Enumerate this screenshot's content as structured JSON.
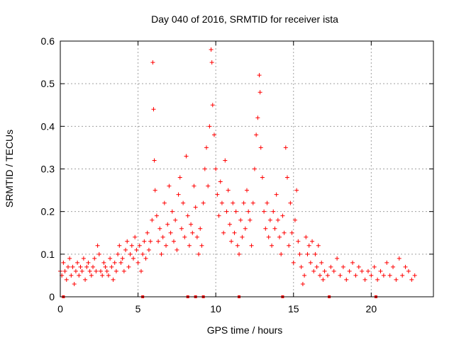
{
  "chart_data": {
    "type": "scatter",
    "title": "Day 040 of 2016, SRMTID for receiver ista",
    "xlabel": "GPS time / hours",
    "ylabel": "SRMTID / TECUs",
    "xlim": [
      0,
      24.0
    ],
    "ylim": [
      0,
      0.6
    ],
    "xticks": [
      0,
      5,
      10,
      15,
      20
    ],
    "yticks": [
      0,
      0.1,
      0.2,
      0.3,
      0.4,
      0.5,
      0.6
    ],
    "xtick_labels": [
      "0",
      "5",
      "10",
      "15",
      "20"
    ],
    "ytick_labels": [
      "0",
      "0.1",
      "0.2",
      "0.3",
      "0.4",
      "0.5",
      "0.6"
    ],
    "grid": true,
    "marker": "+",
    "color": "#ff0000",
    "series": [
      {
        "name": "SRMTID",
        "points": [
          [
            0.0,
            0.06
          ],
          [
            0.1,
            0.05
          ],
          [
            0.2,
            0.08
          ],
          [
            0.3,
            0.06
          ],
          [
            0.4,
            0.04
          ],
          [
            0.5,
            0.07
          ],
          [
            0.6,
            0.09
          ],
          [
            0.7,
            0.05
          ],
          [
            0.8,
            0.07
          ],
          [
            0.9,
            0.03
          ],
          [
            1.0,
            0.06
          ],
          [
            1.1,
            0.08
          ],
          [
            1.2,
            0.05
          ],
          [
            1.3,
            0.07
          ],
          [
            1.4,
            0.06
          ],
          [
            1.5,
            0.09
          ],
          [
            1.6,
            0.04
          ],
          [
            1.7,
            0.07
          ],
          [
            1.8,
            0.08
          ],
          [
            1.9,
            0.06
          ],
          [
            2.0,
            0.05
          ],
          [
            2.1,
            0.07
          ],
          [
            2.2,
            0.09
          ],
          [
            2.3,
            0.06
          ],
          [
            2.4,
            0.12
          ],
          [
            2.5,
            0.1
          ],
          [
            2.6,
            0.06
          ],
          [
            2.7,
            0.05
          ],
          [
            2.8,
            0.08
          ],
          [
            2.9,
            0.07
          ],
          [
            3.0,
            0.06
          ],
          [
            3.1,
            0.05
          ],
          [
            3.2,
            0.09
          ],
          [
            3.3,
            0.07
          ],
          [
            3.4,
            0.04
          ],
          [
            3.5,
            0.08
          ],
          [
            3.6,
            0.06
          ],
          [
            3.7,
            0.1
          ],
          [
            3.8,
            0.12
          ],
          [
            3.9,
            0.08
          ],
          [
            4.0,
            0.09
          ],
          [
            4.1,
            0.06
          ],
          [
            4.2,
            0.11
          ],
          [
            4.3,
            0.13
          ],
          [
            4.4,
            0.07
          ],
          [
            4.5,
            0.1
          ],
          [
            4.6,
            0.12
          ],
          [
            4.7,
            0.09
          ],
          [
            4.8,
            0.14
          ],
          [
            4.9,
            0.11
          ],
          [
            5.0,
            0.08
          ],
          [
            5.1,
            0.12
          ],
          [
            5.2,
            0.06
          ],
          [
            5.3,
            0.1
          ],
          [
            5.4,
            0.13
          ],
          [
            5.5,
            0.09
          ],
          [
            5.6,
            0.15
          ],
          [
            5.7,
            0.11
          ],
          [
            5.8,
            0.13
          ],
          [
            5.9,
            0.18
          ],
          [
            5.95,
            0.55
          ],
          [
            6.0,
            0.44
          ],
          [
            6.05,
            0.32
          ],
          [
            6.1,
            0.25
          ],
          [
            6.2,
            0.19
          ],
          [
            6.3,
            0.13
          ],
          [
            6.4,
            0.16
          ],
          [
            6.5,
            0.1
          ],
          [
            6.6,
            0.14
          ],
          [
            6.7,
            0.22
          ],
          [
            6.8,
            0.12
          ],
          [
            6.9,
            0.17
          ],
          [
            7.0,
            0.26
          ],
          [
            7.1,
            0.15
          ],
          [
            7.2,
            0.2
          ],
          [
            7.3,
            0.13
          ],
          [
            7.4,
            0.18
          ],
          [
            7.5,
            0.11
          ],
          [
            7.6,
            0.24
          ],
          [
            7.7,
            0.28
          ],
          [
            7.8,
            0.16
          ],
          [
            7.9,
            0.22
          ],
          [
            8.0,
            0.14
          ],
          [
            8.1,
            0.33
          ],
          [
            8.2,
            0.19
          ],
          [
            8.3,
            0.12
          ],
          [
            8.4,
            0.17
          ],
          [
            8.5,
            0.15
          ],
          [
            8.6,
            0.26
          ],
          [
            8.7,
            0.21
          ],
          [
            8.8,
            0.14
          ],
          [
            8.9,
            0.1
          ],
          [
            9.0,
            0.16
          ],
          [
            9.1,
            0.12
          ],
          [
            9.2,
            0.22
          ],
          [
            9.3,
            0.3
          ],
          [
            9.4,
            0.35
          ],
          [
            9.5,
            0.26
          ],
          [
            9.6,
            0.4
          ],
          [
            9.7,
            0.58
          ],
          [
            9.75,
            0.55
          ],
          [
            9.8,
            0.45
          ],
          [
            9.9,
            0.38
          ],
          [
            10.0,
            0.3
          ],
          [
            10.1,
            0.24
          ],
          [
            10.2,
            0.19
          ],
          [
            10.3,
            0.27
          ],
          [
            10.4,
            0.22
          ],
          [
            10.5,
            0.15
          ],
          [
            10.6,
            0.32
          ],
          [
            10.7,
            0.2
          ],
          [
            10.8,
            0.25
          ],
          [
            10.9,
            0.17
          ],
          [
            11.0,
            0.13
          ],
          [
            11.1,
            0.22
          ],
          [
            11.2,
            0.15
          ],
          [
            11.3,
            0.2
          ],
          [
            11.4,
            0.12
          ],
          [
            11.5,
            0.1
          ],
          [
            11.6,
            0.18
          ],
          [
            11.7,
            0.14
          ],
          [
            11.8,
            0.22
          ],
          [
            11.9,
            0.16
          ],
          [
            12.0,
            0.25
          ],
          [
            12.1,
            0.2
          ],
          [
            12.2,
            0.18
          ],
          [
            12.3,
            0.12
          ],
          [
            12.4,
            0.22
          ],
          [
            12.5,
            0.3
          ],
          [
            12.6,
            0.38
          ],
          [
            12.7,
            0.42
          ],
          [
            12.8,
            0.52
          ],
          [
            12.85,
            0.48
          ],
          [
            12.9,
            0.35
          ],
          [
            13.0,
            0.28
          ],
          [
            13.1,
            0.2
          ],
          [
            13.2,
            0.16
          ],
          [
            13.3,
            0.22
          ],
          [
            13.4,
            0.14
          ],
          [
            13.5,
            0.18
          ],
          [
            13.6,
            0.12
          ],
          [
            13.7,
            0.2
          ],
          [
            13.8,
            0.16
          ],
          [
            13.9,
            0.24
          ],
          [
            14.0,
            0.18
          ],
          [
            14.1,
            0.14
          ],
          [
            14.2,
            0.1
          ],
          [
            14.3,
            0.19
          ],
          [
            14.4,
            0.15
          ],
          [
            14.5,
            0.35
          ],
          [
            14.6,
            0.28
          ],
          [
            14.7,
            0.12
          ],
          [
            14.8,
            0.22
          ],
          [
            14.9,
            0.15
          ],
          [
            15.0,
            0.08
          ],
          [
            15.1,
            0.18
          ],
          [
            15.2,
            0.25
          ],
          [
            15.3,
            0.13
          ],
          [
            15.4,
            0.1
          ],
          [
            15.5,
            0.07
          ],
          [
            15.6,
            0.03
          ],
          [
            15.7,
            0.05
          ],
          [
            15.8,
            0.14
          ],
          [
            15.9,
            0.1
          ],
          [
            16.0,
            0.12
          ],
          [
            16.1,
            0.08
          ],
          [
            16.2,
            0.13
          ],
          [
            16.3,
            0.06
          ],
          [
            16.4,
            0.1
          ],
          [
            16.5,
            0.07
          ],
          [
            16.6,
            0.12
          ],
          [
            16.7,
            0.05
          ],
          [
            16.8,
            0.08
          ],
          [
            16.9,
            0.04
          ],
          [
            17.0,
            0.06
          ],
          [
            17.2,
            0.05
          ],
          [
            17.4,
            0.07
          ],
          [
            17.6,
            0.06
          ],
          [
            17.8,
            0.09
          ],
          [
            18.0,
            0.05
          ],
          [
            18.2,
            0.07
          ],
          [
            18.4,
            0.04
          ],
          [
            18.6,
            0.06
          ],
          [
            18.8,
            0.08
          ],
          [
            19.0,
            0.05
          ],
          [
            19.2,
            0.07
          ],
          [
            19.4,
            0.06
          ],
          [
            19.6,
            0.04
          ],
          [
            19.8,
            0.06
          ],
          [
            20.0,
            0.05
          ],
          [
            20.2,
            0.07
          ],
          [
            20.4,
            0.04
          ],
          [
            20.6,
            0.06
          ],
          [
            20.8,
            0.05
          ],
          [
            21.0,
            0.08
          ],
          [
            21.2,
            0.05
          ],
          [
            21.4,
            0.07
          ],
          [
            21.6,
            0.04
          ],
          [
            21.8,
            0.09
          ],
          [
            22.0,
            0.05
          ],
          [
            22.2,
            0.07
          ],
          [
            22.4,
            0.06
          ],
          [
            22.6,
            0.04
          ],
          [
            22.8,
            0.05
          ]
        ]
      }
    ],
    "baseline_markers_x": [
      0.2,
      5.3,
      8.2,
      8.7,
      9.2,
      11.5,
      14.3,
      17.3,
      20.3
    ]
  }
}
